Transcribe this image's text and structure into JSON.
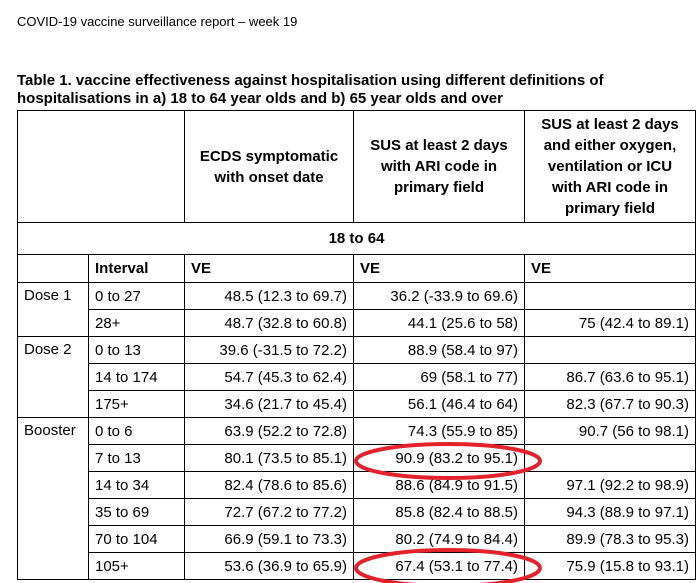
{
  "header": {
    "title": "COVID-19 vaccine surveillance report – week 19"
  },
  "table": {
    "caption": "Table 1. vaccine effectiveness against hospitalisation using different definitions of hospitalisations in a) 18 to 64 year olds and b) 65 year olds and over",
    "columns": [
      "ECDS symptomatic with onset date",
      "SUS at least 2 days with ARI code in primary field",
      "SUS at least 2 days and either oxygen, ventilation or ICU with ARI code in primary field"
    ],
    "section": "18 to 64",
    "interval_label": "Interval",
    "ve_labels": [
      "VE",
      "VE",
      "VE"
    ],
    "groups": [
      {
        "name": "Dose 1",
        "rows": [
          {
            "interval": "0 to 27",
            "ve": [
              "48.5 (12.3 to 69.7)",
              "36.2 (-33.9 to 69.6)",
              null
            ]
          },
          {
            "interval": "28+",
            "ve": [
              "48.7 (32.8 to 60.8)",
              "44.1 (25.6 to 58)",
              "75 (42.4 to 89.1)"
            ]
          }
        ]
      },
      {
        "name": "Dose 2",
        "rows": [
          {
            "interval": "0 to 13",
            "ve": [
              "39.6 (-31.5 to 72.2)",
              "88.9 (58.4 to 97)",
              null
            ]
          },
          {
            "interval": "14 to 174",
            "ve": [
              "54.7 (45.3 to 62.4)",
              "69 (58.1 to 77)",
              "86.7 (63.6 to 95.1)"
            ]
          },
          {
            "interval": "175+",
            "ve": [
              "34.6 (21.7 to 45.4)",
              "56.1 (46.4 to 64)",
              "82.3 (67.7 to 90.3)"
            ]
          }
        ]
      },
      {
        "name": "Booster",
        "rows": [
          {
            "interval": "0 to 6",
            "ve": [
              "63.9 (52.2 to 72.8)",
              "74.3 (55.9 to 85)",
              "90.7 (56 to 98.1)"
            ]
          },
          {
            "interval": "7 to 13",
            "ve": [
              "80.1 (73.5 to 85.1)",
              "90.9 (83.2 to 95.1)",
              null
            ]
          },
          {
            "interval": "14 to 34",
            "ve": [
              "82.4 (78.6 to 85.6)",
              "88.6 (84.9 to 91.5)",
              "97.1 (92.2 to 98.9)"
            ]
          },
          {
            "interval": "35 to 69",
            "ve": [
              "72.7 (67.2 to 77.2)",
              "85.8 (82.4 to 88.5)",
              "94.3 (88.9 to 97.1)"
            ]
          },
          {
            "interval": "70 to 104",
            "ve": [
              "66.9 (59.1 to 73.3)",
              "80.2 (74.9 to 84.4)",
              "89.9 (78.3 to 95.3)"
            ]
          },
          {
            "interval": "105+",
            "ve": [
              "53.6 (36.9 to 65.9)",
              "67.4 (53.1 to 77.4)",
              "75.9 (15.8 to 93.1)"
            ]
          }
        ]
      }
    ]
  }
}
